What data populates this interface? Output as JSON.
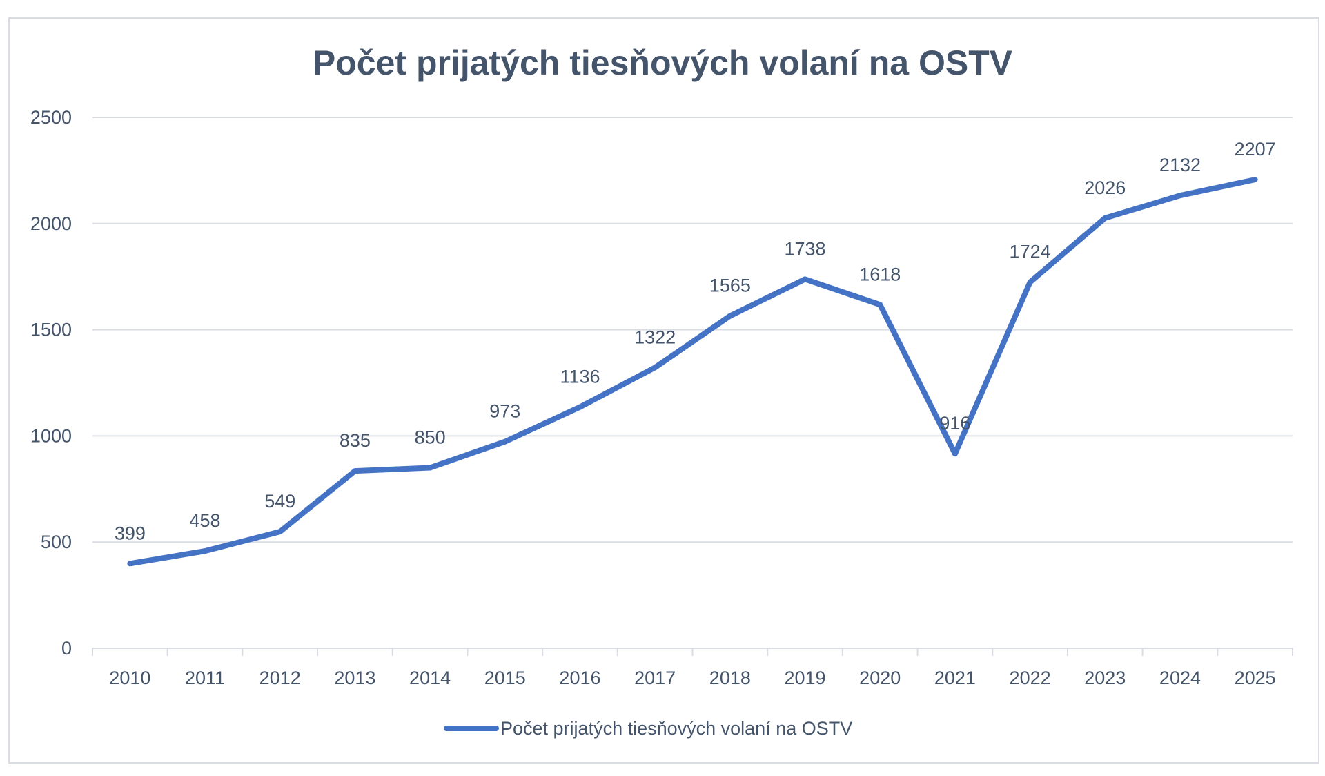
{
  "chart_data": {
    "type": "line",
    "title": "Počet prijatých tiesňových volaní na OSTV",
    "xlabel": "",
    "ylabel": "",
    "categories": [
      "2010",
      "2011",
      "2012",
      "2013",
      "2014",
      "2015",
      "2016",
      "2017",
      "2018",
      "2019",
      "2020",
      "2021",
      "2022",
      "2023",
      "2024",
      "2025"
    ],
    "series": [
      {
        "name": "Počet prijatých tiesňových volaní na OSTV",
        "color": "#4472C4",
        "values": [
          399,
          458,
          549,
          835,
          850,
          973,
          1136,
          1322,
          1565,
          1738,
          1618,
          916,
          1724,
          2026,
          2132,
          2207
        ]
      }
    ],
    "ylim": [
      0,
      2500
    ],
    "yticks": [
      0,
      500,
      1000,
      1500,
      2000,
      2500
    ],
    "grid": true,
    "data_labels": true,
    "legend": "bottom-center"
  }
}
